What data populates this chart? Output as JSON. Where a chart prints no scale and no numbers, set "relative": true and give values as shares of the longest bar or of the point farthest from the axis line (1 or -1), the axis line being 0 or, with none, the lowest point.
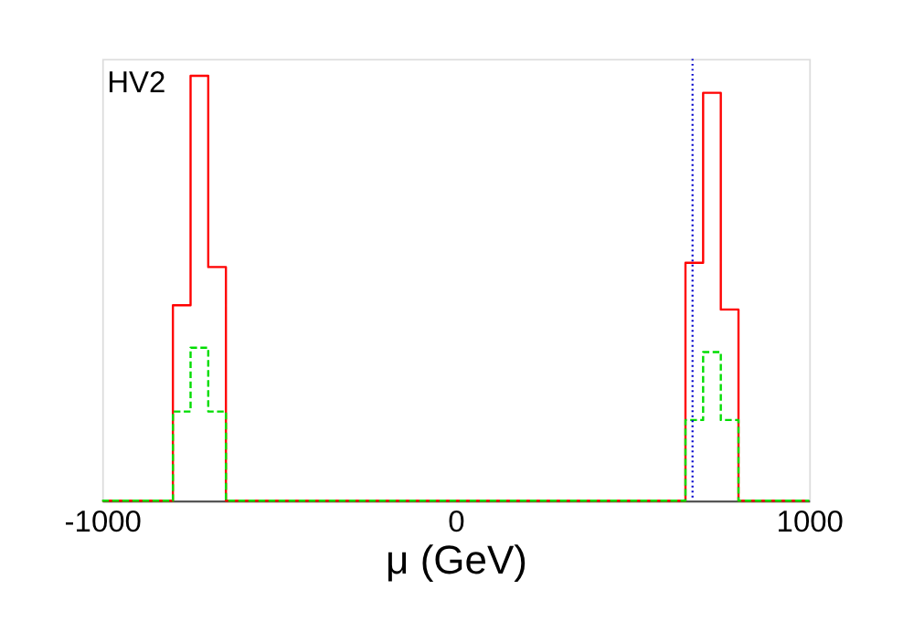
{
  "chart_data": {
    "type": "step",
    "relative": true,
    "tick_labels": "x",
    "x": [
      -1000,
      -800,
      -750,
      -700,
      -650,
      650,
      700,
      750,
      800,
      1000
    ],
    "series": [
      {
        "color": "#ff0000",
        "line_style": "solid",
        "values": [
          0,
          0.46,
          1,
          0.55,
          0,
          0.56,
          0.96,
          0.45,
          0,
          0
        ]
      },
      {
        "color": "#00dd00",
        "line_style": "dashed",
        "values": [
          0,
          0.21,
          0.36,
          0.21,
          0,
          0.19,
          0.35,
          0.19,
          0,
          0
        ]
      }
    ],
    "xlim": [
      -1000,
      1000
    ],
    "xticks": [
      -1000,
      0,
      1000
    ],
    "xlabel": "μ (GeV)",
    "ref_lines": [
      {
        "axis": "x",
        "value": 670,
        "color": "#0000cc",
        "line_style": "dotted"
      }
    ],
    "annotations": [
      "HV2"
    ],
    "grid": false
  }
}
